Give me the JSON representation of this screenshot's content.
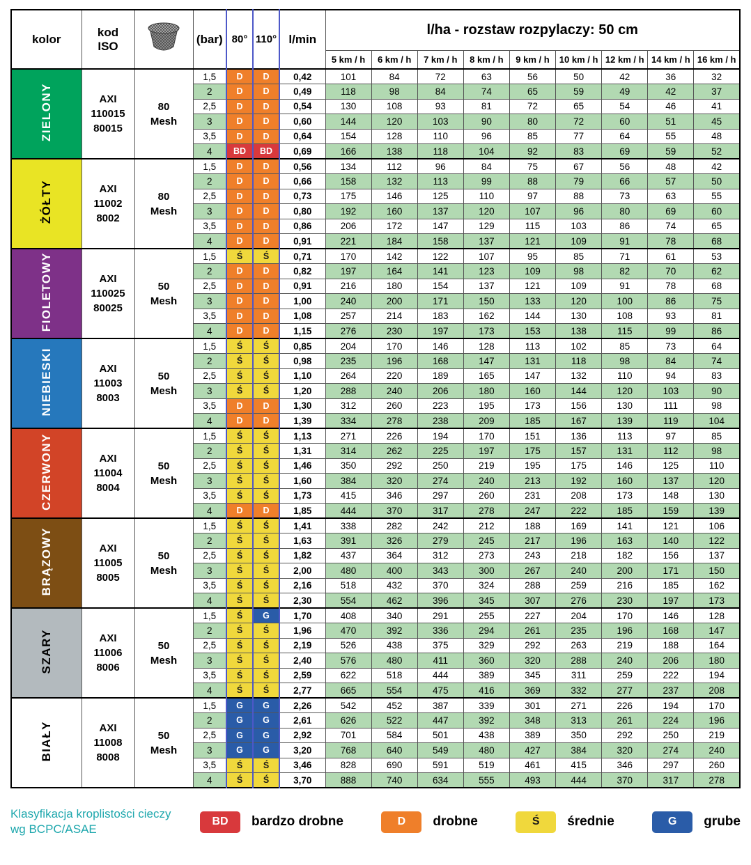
{
  "header": {
    "kolor": "kolor",
    "kod_line1": "kod",
    "kod_line2": "ISO",
    "icon": "nozzle-strainer",
    "bar": "(bar)",
    "deg80": "80°",
    "deg110": "110°",
    "lmin": "l/min",
    "lha_title": "l/ha - rozstaw rozpylaczy: 50 cm",
    "speeds": [
      "5 km / h",
      "6 km / h",
      "7 km / h",
      "8 km / h",
      "9 km / h",
      "10 km / h",
      "12 km / h",
      "14 km / h",
      "16 km / h"
    ]
  },
  "droplet_classes": {
    "BD": {
      "label": "BD",
      "color": "#d8393c",
      "text": "#ffffff"
    },
    "D": {
      "label": "D",
      "color": "#ef7f2a",
      "text": "#ffffff"
    },
    "S": {
      "label": "Ś",
      "color": "#f0d83c",
      "text": "#1a1a1a"
    },
    "G": {
      "label": "G",
      "color": "#2a5ca8",
      "text": "#ffffff"
    }
  },
  "groups": [
    {
      "name": "ZIELONY",
      "color": "#00a35c",
      "text_color": "#ffffff",
      "code": [
        "AXI",
        "110015",
        "80015"
      ],
      "mesh": [
        "80",
        "Mesh"
      ],
      "rows": [
        {
          "bar": "1,5",
          "c80": "D",
          "c110": "D",
          "lmin": "0,42",
          "values": [
            "101",
            "84",
            "72",
            "63",
            "56",
            "50",
            "42",
            "36",
            "32"
          ]
        },
        {
          "bar": "2",
          "c80": "D",
          "c110": "D",
          "lmin": "0,49",
          "values": [
            "118",
            "98",
            "84",
            "74",
            "65",
            "59",
            "49",
            "42",
            "37"
          ]
        },
        {
          "bar": "2,5",
          "c80": "D",
          "c110": "D",
          "lmin": "0,54",
          "values": [
            "130",
            "108",
            "93",
            "81",
            "72",
            "65",
            "54",
            "46",
            "41"
          ]
        },
        {
          "bar": "3",
          "c80": "D",
          "c110": "D",
          "lmin": "0,60",
          "values": [
            "144",
            "120",
            "103",
            "90",
            "80",
            "72",
            "60",
            "51",
            "45"
          ]
        },
        {
          "bar": "3,5",
          "c80": "D",
          "c110": "D",
          "lmin": "0,64",
          "values": [
            "154",
            "128",
            "110",
            "96",
            "85",
            "77",
            "64",
            "55",
            "48"
          ]
        },
        {
          "bar": "4",
          "c80": "BD",
          "c110": "BD",
          "lmin": "0,69",
          "values": [
            "166",
            "138",
            "118",
            "104",
            "92",
            "83",
            "69",
            "59",
            "52"
          ]
        }
      ]
    },
    {
      "name": "ŻÓŁTY",
      "color": "#e9e424",
      "text_color": "#000000",
      "code": [
        "AXI",
        "11002",
        "8002"
      ],
      "mesh": [
        "80",
        "Mesh"
      ],
      "rows": [
        {
          "bar": "1,5",
          "c80": "D",
          "c110": "D",
          "lmin": "0,56",
          "values": [
            "134",
            "112",
            "96",
            "84",
            "75",
            "67",
            "56",
            "48",
            "42"
          ]
        },
        {
          "bar": "2",
          "c80": "D",
          "c110": "D",
          "lmin": "0,66",
          "values": [
            "158",
            "132",
            "113",
            "99",
            "88",
            "79",
            "66",
            "57",
            "50"
          ]
        },
        {
          "bar": "2,5",
          "c80": "D",
          "c110": "D",
          "lmin": "0,73",
          "values": [
            "175",
            "146",
            "125",
            "110",
            "97",
            "88",
            "73",
            "63",
            "55"
          ]
        },
        {
          "bar": "3",
          "c80": "D",
          "c110": "D",
          "lmin": "0,80",
          "values": [
            "192",
            "160",
            "137",
            "120",
            "107",
            "96",
            "80",
            "69",
            "60"
          ]
        },
        {
          "bar": "3,5",
          "c80": "D",
          "c110": "D",
          "lmin": "0,86",
          "values": [
            "206",
            "172",
            "147",
            "129",
            "115",
            "103",
            "86",
            "74",
            "65"
          ]
        },
        {
          "bar": "4",
          "c80": "D",
          "c110": "D",
          "lmin": "0,91",
          "values": [
            "221",
            "184",
            "158",
            "137",
            "121",
            "109",
            "91",
            "78",
            "68"
          ]
        }
      ]
    },
    {
      "name": "FIOLETOWY",
      "color": "#7e3188",
      "text_color": "#ffffff",
      "code": [
        "AXI",
        "110025",
        "80025"
      ],
      "mesh": [
        "50",
        "Mesh"
      ],
      "rows": [
        {
          "bar": "1,5",
          "c80": "S",
          "c110": "S",
          "lmin": "0,71",
          "values": [
            "170",
            "142",
            "122",
            "107",
            "95",
            "85",
            "71",
            "61",
            "53"
          ]
        },
        {
          "bar": "2",
          "c80": "D",
          "c110": "D",
          "lmin": "0,82",
          "values": [
            "197",
            "164",
            "141",
            "123",
            "109",
            "98",
            "82",
            "70",
            "62"
          ]
        },
        {
          "bar": "2,5",
          "c80": "D",
          "c110": "D",
          "lmin": "0,91",
          "values": [
            "216",
            "180",
            "154",
            "137",
            "121",
            "109",
            "91",
            "78",
            "68"
          ]
        },
        {
          "bar": "3",
          "c80": "D",
          "c110": "D",
          "lmin": "1,00",
          "values": [
            "240",
            "200",
            "171",
            "150",
            "133",
            "120",
            "100",
            "86",
            "75"
          ]
        },
        {
          "bar": "3,5",
          "c80": "D",
          "c110": "D",
          "lmin": "1,08",
          "values": [
            "257",
            "214",
            "183",
            "162",
            "144",
            "130",
            "108",
            "93",
            "81"
          ]
        },
        {
          "bar": "4",
          "c80": "D",
          "c110": "D",
          "lmin": "1,15",
          "values": [
            "276",
            "230",
            "197",
            "173",
            "153",
            "138",
            "115",
            "99",
            "86"
          ]
        }
      ]
    },
    {
      "name": "NIEBIESKI",
      "color": "#2678bc",
      "text_color": "#ffffff",
      "code": [
        "AXI",
        "11003",
        "8003"
      ],
      "mesh": [
        "50",
        "Mesh"
      ],
      "rows": [
        {
          "bar": "1,5",
          "c80": "S",
          "c110": "S",
          "lmin": "0,85",
          "values": [
            "204",
            "170",
            "146",
            "128",
            "113",
            "102",
            "85",
            "73",
            "64"
          ]
        },
        {
          "bar": "2",
          "c80": "S",
          "c110": "S",
          "lmin": "0,98",
          "values": [
            "235",
            "196",
            "168",
            "147",
            "131",
            "118",
            "98",
            "84",
            "74"
          ]
        },
        {
          "bar": "2,5",
          "c80": "S",
          "c110": "S",
          "lmin": "1,10",
          "values": [
            "264",
            "220",
            "189",
            "165",
            "147",
            "132",
            "110",
            "94",
            "83"
          ]
        },
        {
          "bar": "3",
          "c80": "S",
          "c110": "S",
          "lmin": "1,20",
          "values": [
            "288",
            "240",
            "206",
            "180",
            "160",
            "144",
            "120",
            "103",
            "90"
          ]
        },
        {
          "bar": "3,5",
          "c80": "D",
          "c110": "D",
          "lmin": "1,30",
          "values": [
            "312",
            "260",
            "223",
            "195",
            "173",
            "156",
            "130",
            "111",
            "98"
          ]
        },
        {
          "bar": "4",
          "c80": "D",
          "c110": "D",
          "lmin": "1,39",
          "values": [
            "334",
            "278",
            "238",
            "209",
            "185",
            "167",
            "139",
            "119",
            "104"
          ]
        }
      ]
    },
    {
      "name": "CZERWONY",
      "color": "#d24427",
      "text_color": "#ffffff",
      "code": [
        "AXI",
        "11004",
        "8004"
      ],
      "mesh": [
        "50",
        "Mesh"
      ],
      "rows": [
        {
          "bar": "1,5",
          "c80": "S",
          "c110": "S",
          "lmin": "1,13",
          "values": [
            "271",
            "226",
            "194",
            "170",
            "151",
            "136",
            "113",
            "97",
            "85"
          ]
        },
        {
          "bar": "2",
          "c80": "S",
          "c110": "S",
          "lmin": "1,31",
          "values": [
            "314",
            "262",
            "225",
            "197",
            "175",
            "157",
            "131",
            "112",
            "98"
          ]
        },
        {
          "bar": "2,5",
          "c80": "S",
          "c110": "S",
          "lmin": "1,46",
          "values": [
            "350",
            "292",
            "250",
            "219",
            "195",
            "175",
            "146",
            "125",
            "110"
          ]
        },
        {
          "bar": "3",
          "c80": "S",
          "c110": "S",
          "lmin": "1,60",
          "values": [
            "384",
            "320",
            "274",
            "240",
            "213",
            "192",
            "160",
            "137",
            "120"
          ]
        },
        {
          "bar": "3,5",
          "c80": "S",
          "c110": "S",
          "lmin": "1,73",
          "values": [
            "415",
            "346",
            "297",
            "260",
            "231",
            "208",
            "173",
            "148",
            "130"
          ]
        },
        {
          "bar": "4",
          "c80": "D",
          "c110": "D",
          "lmin": "1,85",
          "values": [
            "444",
            "370",
            "317",
            "278",
            "247",
            "222",
            "185",
            "159",
            "139"
          ]
        }
      ]
    },
    {
      "name": "BRĄZOWY",
      "color": "#7d4e14",
      "text_color": "#ffffff",
      "code": [
        "AXI",
        "11005",
        "8005"
      ],
      "mesh": [
        "50",
        "Mesh"
      ],
      "rows": [
        {
          "bar": "1,5",
          "c80": "S",
          "c110": "S",
          "lmin": "1,41",
          "values": [
            "338",
            "282",
            "242",
            "212",
            "188",
            "169",
            "141",
            "121",
            "106"
          ]
        },
        {
          "bar": "2",
          "c80": "S",
          "c110": "S",
          "lmin": "1,63",
          "values": [
            "391",
            "326",
            "279",
            "245",
            "217",
            "196",
            "163",
            "140",
            "122"
          ]
        },
        {
          "bar": "2,5",
          "c80": "S",
          "c110": "S",
          "lmin": "1,82",
          "values": [
            "437",
            "364",
            "312",
            "273",
            "243",
            "218",
            "182",
            "156",
            "137"
          ]
        },
        {
          "bar": "3",
          "c80": "S",
          "c110": "S",
          "lmin": "2,00",
          "values": [
            "480",
            "400",
            "343",
            "300",
            "267",
            "240",
            "200",
            "171",
            "150"
          ]
        },
        {
          "bar": "3,5",
          "c80": "S",
          "c110": "S",
          "lmin": "2,16",
          "values": [
            "518",
            "432",
            "370",
            "324",
            "288",
            "259",
            "216",
            "185",
            "162"
          ]
        },
        {
          "bar": "4",
          "c80": "S",
          "c110": "S",
          "lmin": "2,30",
          "values": [
            "554",
            "462",
            "396",
            "345",
            "307",
            "276",
            "230",
            "197",
            "173"
          ]
        }
      ]
    },
    {
      "name": "SZARY",
      "color": "#b3babe",
      "text_color": "#000000",
      "code": [
        "AXI",
        "11006",
        "8006"
      ],
      "mesh": [
        "50",
        "Mesh"
      ],
      "rows": [
        {
          "bar": "1,5",
          "c80": "S",
          "c110": "G",
          "lmin": "1,70",
          "values": [
            "408",
            "340",
            "291",
            "255",
            "227",
            "204",
            "170",
            "146",
            "128"
          ]
        },
        {
          "bar": "2",
          "c80": "S",
          "c110": "S",
          "lmin": "1,96",
          "values": [
            "470",
            "392",
            "336",
            "294",
            "261",
            "235",
            "196",
            "168",
            "147"
          ]
        },
        {
          "bar": "2,5",
          "c80": "S",
          "c110": "S",
          "lmin": "2,19",
          "values": [
            "526",
            "438",
            "375",
            "329",
            "292",
            "263",
            "219",
            "188",
            "164"
          ]
        },
        {
          "bar": "3",
          "c80": "S",
          "c110": "S",
          "lmin": "2,40",
          "values": [
            "576",
            "480",
            "411",
            "360",
            "320",
            "288",
            "240",
            "206",
            "180"
          ]
        },
        {
          "bar": "3,5",
          "c80": "S",
          "c110": "S",
          "lmin": "2,59",
          "values": [
            "622",
            "518",
            "444",
            "389",
            "345",
            "311",
            "259",
            "222",
            "194"
          ]
        },
        {
          "bar": "4",
          "c80": "S",
          "c110": "S",
          "lmin": "2,77",
          "values": [
            "665",
            "554",
            "475",
            "416",
            "369",
            "332",
            "277",
            "237",
            "208"
          ]
        }
      ]
    },
    {
      "name": "BIAŁY",
      "color": "#ffffff",
      "text_color": "#000000",
      "code": [
        "AXI",
        "11008",
        "8008"
      ],
      "mesh": [
        "50",
        "Mesh"
      ],
      "rows": [
        {
          "bar": "1,5",
          "c80": "G",
          "c110": "G",
          "lmin": "2,26",
          "values": [
            "542",
            "452",
            "387",
            "339",
            "301",
            "271",
            "226",
            "194",
            "170"
          ]
        },
        {
          "bar": "2",
          "c80": "G",
          "c110": "G",
          "lmin": "2,61",
          "values": [
            "626",
            "522",
            "447",
            "392",
            "348",
            "313",
            "261",
            "224",
            "196"
          ]
        },
        {
          "bar": "2,5",
          "c80": "G",
          "c110": "G",
          "lmin": "2,92",
          "values": [
            "701",
            "584",
            "501",
            "438",
            "389",
            "350",
            "292",
            "250",
            "219"
          ]
        },
        {
          "bar": "3",
          "c80": "G",
          "c110": "G",
          "lmin": "3,20",
          "values": [
            "768",
            "640",
            "549",
            "480",
            "427",
            "384",
            "320",
            "274",
            "240"
          ]
        },
        {
          "bar": "3,5",
          "c80": "S",
          "c110": "S",
          "lmin": "3,46",
          "values": [
            "828",
            "690",
            "591",
            "519",
            "461",
            "415",
            "346",
            "297",
            "260"
          ]
        },
        {
          "bar": "4",
          "c80": "S",
          "c110": "S",
          "lmin": "3,70",
          "values": [
            "888",
            "740",
            "634",
            "555",
            "493",
            "444",
            "370",
            "317",
            "278"
          ]
        }
      ]
    }
  ],
  "legend": {
    "title_line1": "Klasyfikacja kroplistości cieczy",
    "title_line2": "wg BCPC/ASAE",
    "items": [
      {
        "code": "BD",
        "label": "bardzo drobne"
      },
      {
        "code": "D",
        "label": "drobne"
      },
      {
        "code": "S",
        "label": "średnie"
      },
      {
        "code": "G",
        "label": "grube"
      }
    ]
  }
}
